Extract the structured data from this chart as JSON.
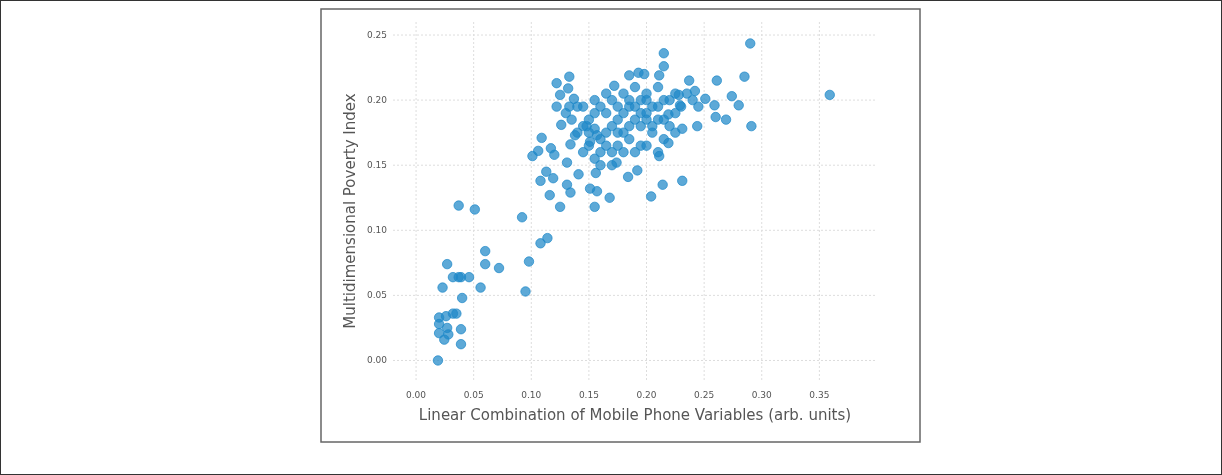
{
  "chart_data": {
    "type": "scatter",
    "xlabel": "Linear Combination of Mobile Phone Variables (arb. units)",
    "ylabel": "Multidimensional Poverty Index",
    "x": [
      0.019,
      0.02,
      0.02,
      0.02,
      0.027,
      0.026,
      0.032,
      0.035,
      0.028,
      0.0245,
      0.039,
      0.039,
      0.023,
      0.027,
      0.032,
      0.037,
      0.039,
      0.046,
      0.04,
      0.056,
      0.06,
      0.06,
      0.072,
      0.098,
      0.095,
      0.108,
      0.114,
      0.037,
      0.051,
      0.092,
      0.133,
      0.122,
      0.132,
      0.125,
      0.122,
      0.133,
      0.137,
      0.126,
      0.109,
      0.106,
      0.101,
      0.117,
      0.12,
      0.131,
      0.113,
      0.108,
      0.119,
      0.131,
      0.134,
      0.116,
      0.125,
      0.141,
      0.134,
      0.138,
      0.148,
      0.151,
      0.157,
      0.29,
      0.359,
      0.285,
      0.261,
      0.237,
      0.274,
      0.28,
      0.291,
      0.269,
      0.26,
      0.244,
      0.215,
      0.215,
      0.211,
      0.185,
      0.193,
      0.198,
      0.172,
      0.231,
      0.214,
      0.204,
      0.192,
      0.184,
      0.174,
      0.168,
      0.157,
      0.151,
      0.155,
      0.156,
      0.211,
      0.219,
      0.231,
      0.242,
      0.251,
      0.259,
      0.228,
      0.219,
      0.229,
      0.145,
      0.15,
      0.155,
      0.16,
      0.165,
      0.17,
      0.175,
      0.18,
      0.185,
      0.19,
      0.195,
      0.2,
      0.205,
      0.21,
      0.215,
      0.22,
      0.225,
      0.185,
      0.195,
      0.205,
      0.15,
      0.16,
      0.17,
      0.14,
      0.145,
      0.155,
      0.165,
      0.175,
      0.18,
      0.19,
      0.2,
      0.21,
      0.215,
      0.23,
      0.235,
      0.24,
      0.2,
      0.21,
      0.19,
      0.18,
      0.17,
      0.16,
      0.155,
      0.15,
      0.165,
      0.175,
      0.185,
      0.195,
      0.205,
      0.215,
      0.22,
      0.225,
      0.145,
      0.135,
      0.14,
      0.13,
      0.16,
      0.17,
      0.195,
      0.2,
      0.185,
      0.175,
      0.155,
      0.165,
      0.2,
      0.21,
      0.19,
      0.18,
      0.225,
      0.245
    ],
    "values": [
      0.0,
      0.033,
      0.028,
      0.021,
      0.025,
      0.034,
      0.036,
      0.036,
      0.02,
      0.016,
      0.024,
      0.0125,
      0.056,
      0.074,
      0.064,
      0.064,
      0.064,
      0.064,
      0.048,
      0.056,
      0.084,
      0.074,
      0.071,
      0.076,
      0.053,
      0.09,
      0.094,
      0.119,
      0.116,
      0.11,
      0.218,
      0.213,
      0.209,
      0.204,
      0.195,
      0.195,
      0.201,
      0.181,
      0.171,
      0.161,
      0.157,
      0.163,
      0.158,
      0.152,
      0.145,
      0.138,
      0.14,
      0.135,
      0.129,
      0.127,
      0.118,
      0.143,
      0.166,
      0.173,
      0.18,
      0.168,
      0.173,
      0.2435,
      0.204,
      0.218,
      0.215,
      0.215,
      0.203,
      0.196,
      0.18,
      0.185,
      0.187,
      0.18,
      0.236,
      0.226,
      0.219,
      0.219,
      0.221,
      0.22,
      0.211,
      0.138,
      0.135,
      0.126,
      0.146,
      0.141,
      0.152,
      0.125,
      0.13,
      0.132,
      0.118,
      0.144,
      0.157,
      0.167,
      0.178,
      0.207,
      0.201,
      0.196,
      0.204,
      0.189,
      0.196,
      0.195,
      0.185,
      0.178,
      0.17,
      0.19,
      0.18,
      0.165,
      0.175,
      0.195,
      0.185,
      0.2,
      0.19,
      0.18,
      0.195,
      0.185,
      0.2,
      0.19,
      0.17,
      0.165,
      0.175,
      0.165,
      0.16,
      0.16,
      0.175,
      0.16,
      0.2,
      0.205,
      0.195,
      0.205,
      0.21,
      0.205,
      0.21,
      0.2,
      0.195,
      0.205,
      0.2,
      0.165,
      0.16,
      0.16,
      0.16,
      0.15,
      0.15,
      0.155,
      0.175,
      0.175,
      0.185,
      0.18,
      0.18,
      0.195,
      0.17,
      0.18,
      0.175,
      0.18,
      0.185,
      0.195,
      0.19,
      0.195,
      0.2,
      0.19,
      0.185,
      0.2,
      0.175,
      0.19,
      0.165,
      0.2,
      0.185,
      0.195,
      0.19,
      0.205,
      0.195
    ],
    "color": "#1f88c8",
    "marker": "circle",
    "grid": true,
    "xlim": [
      -0.02,
      0.4
    ],
    "ylim": [
      -0.015,
      0.26
    ],
    "xticks": [
      {
        "value": 0,
        "label": "0.00"
      },
      {
        "value": 0.05,
        "label": "0.05"
      },
      {
        "value": 0.1,
        "label": "0.10"
      },
      {
        "value": 0.15,
        "label": "0.15"
      },
      {
        "value": 0.2,
        "label": "0.20"
      },
      {
        "value": 0.25,
        "label": "0.25"
      },
      {
        "value": 0.3,
        "label": "0.30"
      },
      {
        "value": 0.35,
        "label": "0.35"
      }
    ],
    "yticks": [
      {
        "value": 0,
        "label": "0.00"
      },
      {
        "value": 0.05,
        "label": "0.05"
      },
      {
        "value": 0.1,
        "label": "0.10"
      },
      {
        "value": 0.15,
        "label": "0.15"
      },
      {
        "value": 0.2,
        "label": "0.20"
      },
      {
        "value": 0.25,
        "label": "0.25"
      }
    ]
  }
}
